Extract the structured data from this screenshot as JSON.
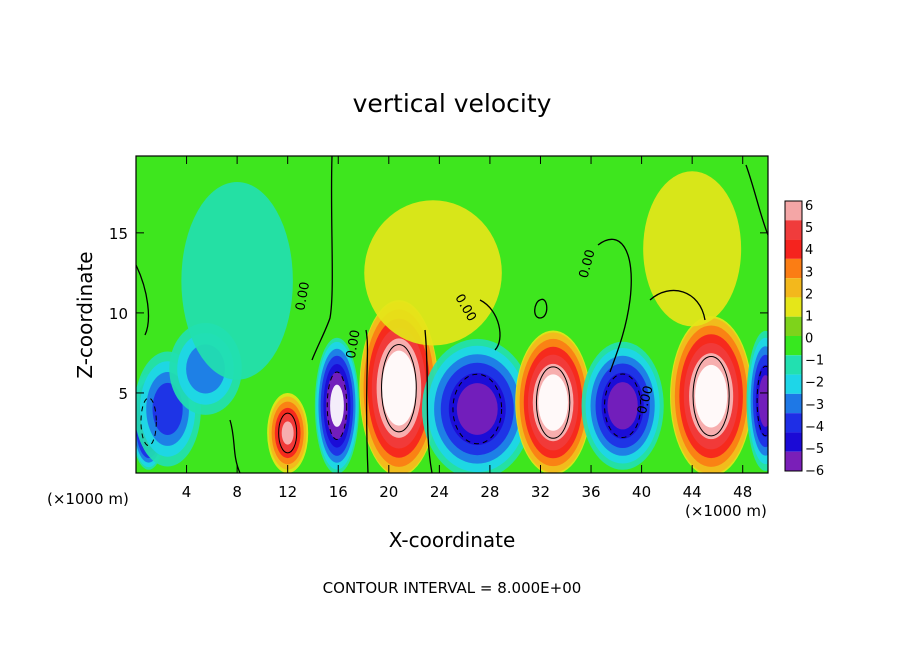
{
  "chart_data": {
    "type": "heatmap",
    "title": "vertical velocity",
    "xlabel": "X-coordinate",
    "ylabel": "Z-coordinate",
    "x_unit_label": "(×1000 m)",
    "x_unit_label_right": "(×1000 m)",
    "footer": "CONTOUR INTERVAL = 8.000E+00",
    "xlim": [
      0,
      50
    ],
    "ylim": [
      0,
      19.8
    ],
    "x_ticks": [
      4,
      8,
      12,
      16,
      20,
      24,
      28,
      32,
      36,
      40,
      44,
      48
    ],
    "x_tick_labels": [
      "4",
      "8",
      "12",
      "16",
      "20",
      "24",
      "28",
      "32",
      "36",
      "40",
      "44",
      "48"
    ],
    "y_ticks": [
      5,
      10,
      15
    ],
    "y_tick_labels": [
      "5",
      "10",
      "15"
    ],
    "colorbar": {
      "levels": [
        "6",
        "5",
        "4",
        "3",
        "2",
        "1",
        "0",
        "−1",
        "−2",
        "−3",
        "−4",
        "−5",
        "−6"
      ],
      "colors": [
        "#f4a6a6",
        "#f03c3c",
        "#f5231e",
        "#fb7d14",
        "#f3b81c",
        "#e5e619",
        "#7ed31b",
        "#37e81f",
        "#22e0b0",
        "#1ed6e8",
        "#1e78e6",
        "#1e2ee6",
        "#1b0ad6",
        "#7a1fb8"
      ]
    },
    "contour_labels": [
      {
        "text": "0.00",
        "x": 13.5,
        "y": 11.0,
        "angle": -80
      },
      {
        "text": "0.00",
        "x": 17.5,
        "y": 8.0,
        "angle": -80
      },
      {
        "text": "0.00",
        "x": 25.8,
        "y": 10.2,
        "angle": 60
      },
      {
        "text": "0.00",
        "x": 36.0,
        "y": 13.0,
        "angle": -75
      },
      {
        "text": "0.00",
        "x": 40.6,
        "y": 4.5,
        "angle": -75
      }
    ],
    "cells": [
      {
        "x": 1.0,
        "y": 3.2,
        "rx": 1.1,
        "ry": 2.4,
        "v": -9
      },
      {
        "x": 2.5,
        "y": 4.0,
        "rx": 2.2,
        "ry": 3.0,
        "v": -4.5
      },
      {
        "x": 5.5,
        "y": 6.5,
        "rx": 2.5,
        "ry": 2.5,
        "v": -3.5
      },
      {
        "x": 8.0,
        "y": 12.0,
        "rx": 5.0,
        "ry": 7.0,
        "v": -1.4
      },
      {
        "x": 12.0,
        "y": 2.5,
        "rx": 1.3,
        "ry": 2.0,
        "v": 6.5
      },
      {
        "x": 15.9,
        "y": 4.2,
        "rx": 1.4,
        "ry": 3.4,
        "v": -8.5
      },
      {
        "x": 20.8,
        "y": 5.3,
        "rx": 2.5,
        "ry": 4.4,
        "v": 10
      },
      {
        "x": 27.0,
        "y": 4.0,
        "rx": 3.5,
        "ry": 3.5,
        "v": -7
      },
      {
        "x": 33.0,
        "y": 4.4,
        "rx": 2.4,
        "ry": 3.6,
        "v": 9.5
      },
      {
        "x": 38.5,
        "y": 4.2,
        "rx": 2.6,
        "ry": 3.2,
        "v": -7
      },
      {
        "x": 45.5,
        "y": 4.8,
        "rx": 2.6,
        "ry": 4.0,
        "v": 9.5
      },
      {
        "x": 49.8,
        "y": 4.5,
        "rx": 1.2,
        "ry": 3.5,
        "v": -7
      },
      {
        "x": 23.5,
        "y": 12.5,
        "rx": 6.0,
        "ry": 5.0,
        "v": 0.8
      },
      {
        "x": 44.0,
        "y": 14.0,
        "rx": 4.0,
        "ry": 5.0,
        "v": 1.0
      }
    ]
  }
}
